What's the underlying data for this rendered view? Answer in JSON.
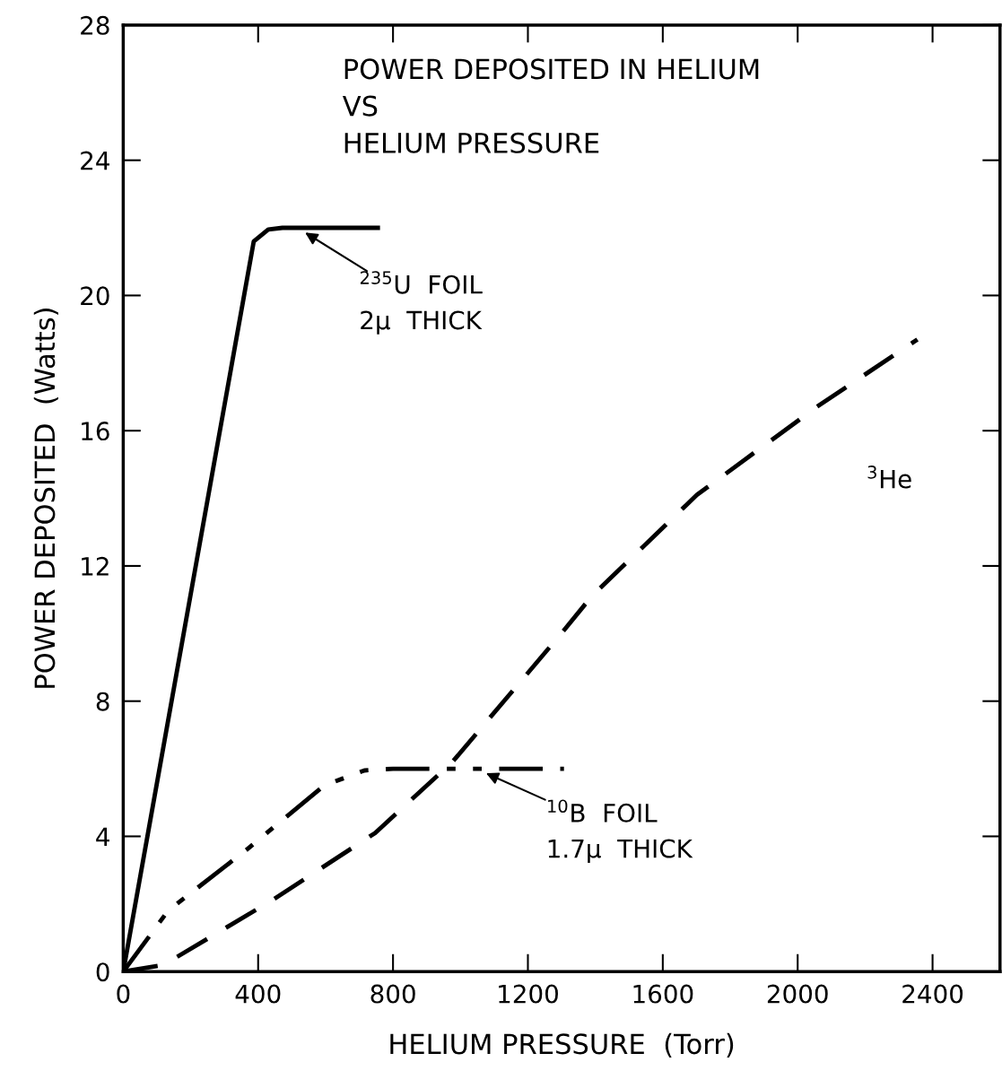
{
  "chart_data": {
    "type": "line",
    "title": "POWER DEPOSITED IN HELIUM\nVS\nHELIUM PRESSURE",
    "xlabel": "HELIUM PRESSURE  (Torr)",
    "ylabel": "POWER DEPOSITED  (Watts)",
    "xlim": [
      0,
      2600
    ],
    "ylim": [
      0,
      28
    ],
    "xticks": [
      0,
      400,
      800,
      1200,
      1600,
      2000,
      2400
    ],
    "yticks": [
      0,
      4,
      8,
      12,
      16,
      20,
      24,
      28
    ],
    "grid": false,
    "legend": false,
    "series": [
      {
        "color": "#000000",
        "line_style": "solid",
        "x": [
          0,
          387,
          430,
          472,
          755
        ],
        "values": [
          0,
          21.6,
          21.95,
          22,
          22
        ]
      },
      {
        "name": "$^{3}$He",
        "color": "#000000",
        "line_style": "dashed",
        "x": [
          0,
          120,
          440,
          747,
          976,
          1299,
          1389,
          1701,
          2056,
          2355
        ],
        "values": [
          0,
          0.2,
          2.1,
          4.1,
          6.2,
          10.0,
          11.1,
          14.1,
          16.7,
          18.7
        ]
      },
      {
        "color": "#000000",
        "line_style": "dashdot",
        "x": [
          0,
          133,
          365,
          595,
          715,
          800,
          1307
        ],
        "values": [
          0,
          1.8,
          3.6,
          5.5,
          5.95,
          6,
          6
        ]
      }
    ],
    "annotations": [
      {
        "text": "$^{235}$U  FOIL\n2μ  THICK",
        "x": 533,
        "y": 21.9
      },
      {
        "text": "$^{10}$B  FOIL\n1.7μ  THICK",
        "x": 1069,
        "y": 5.9
      }
    ]
  }
}
